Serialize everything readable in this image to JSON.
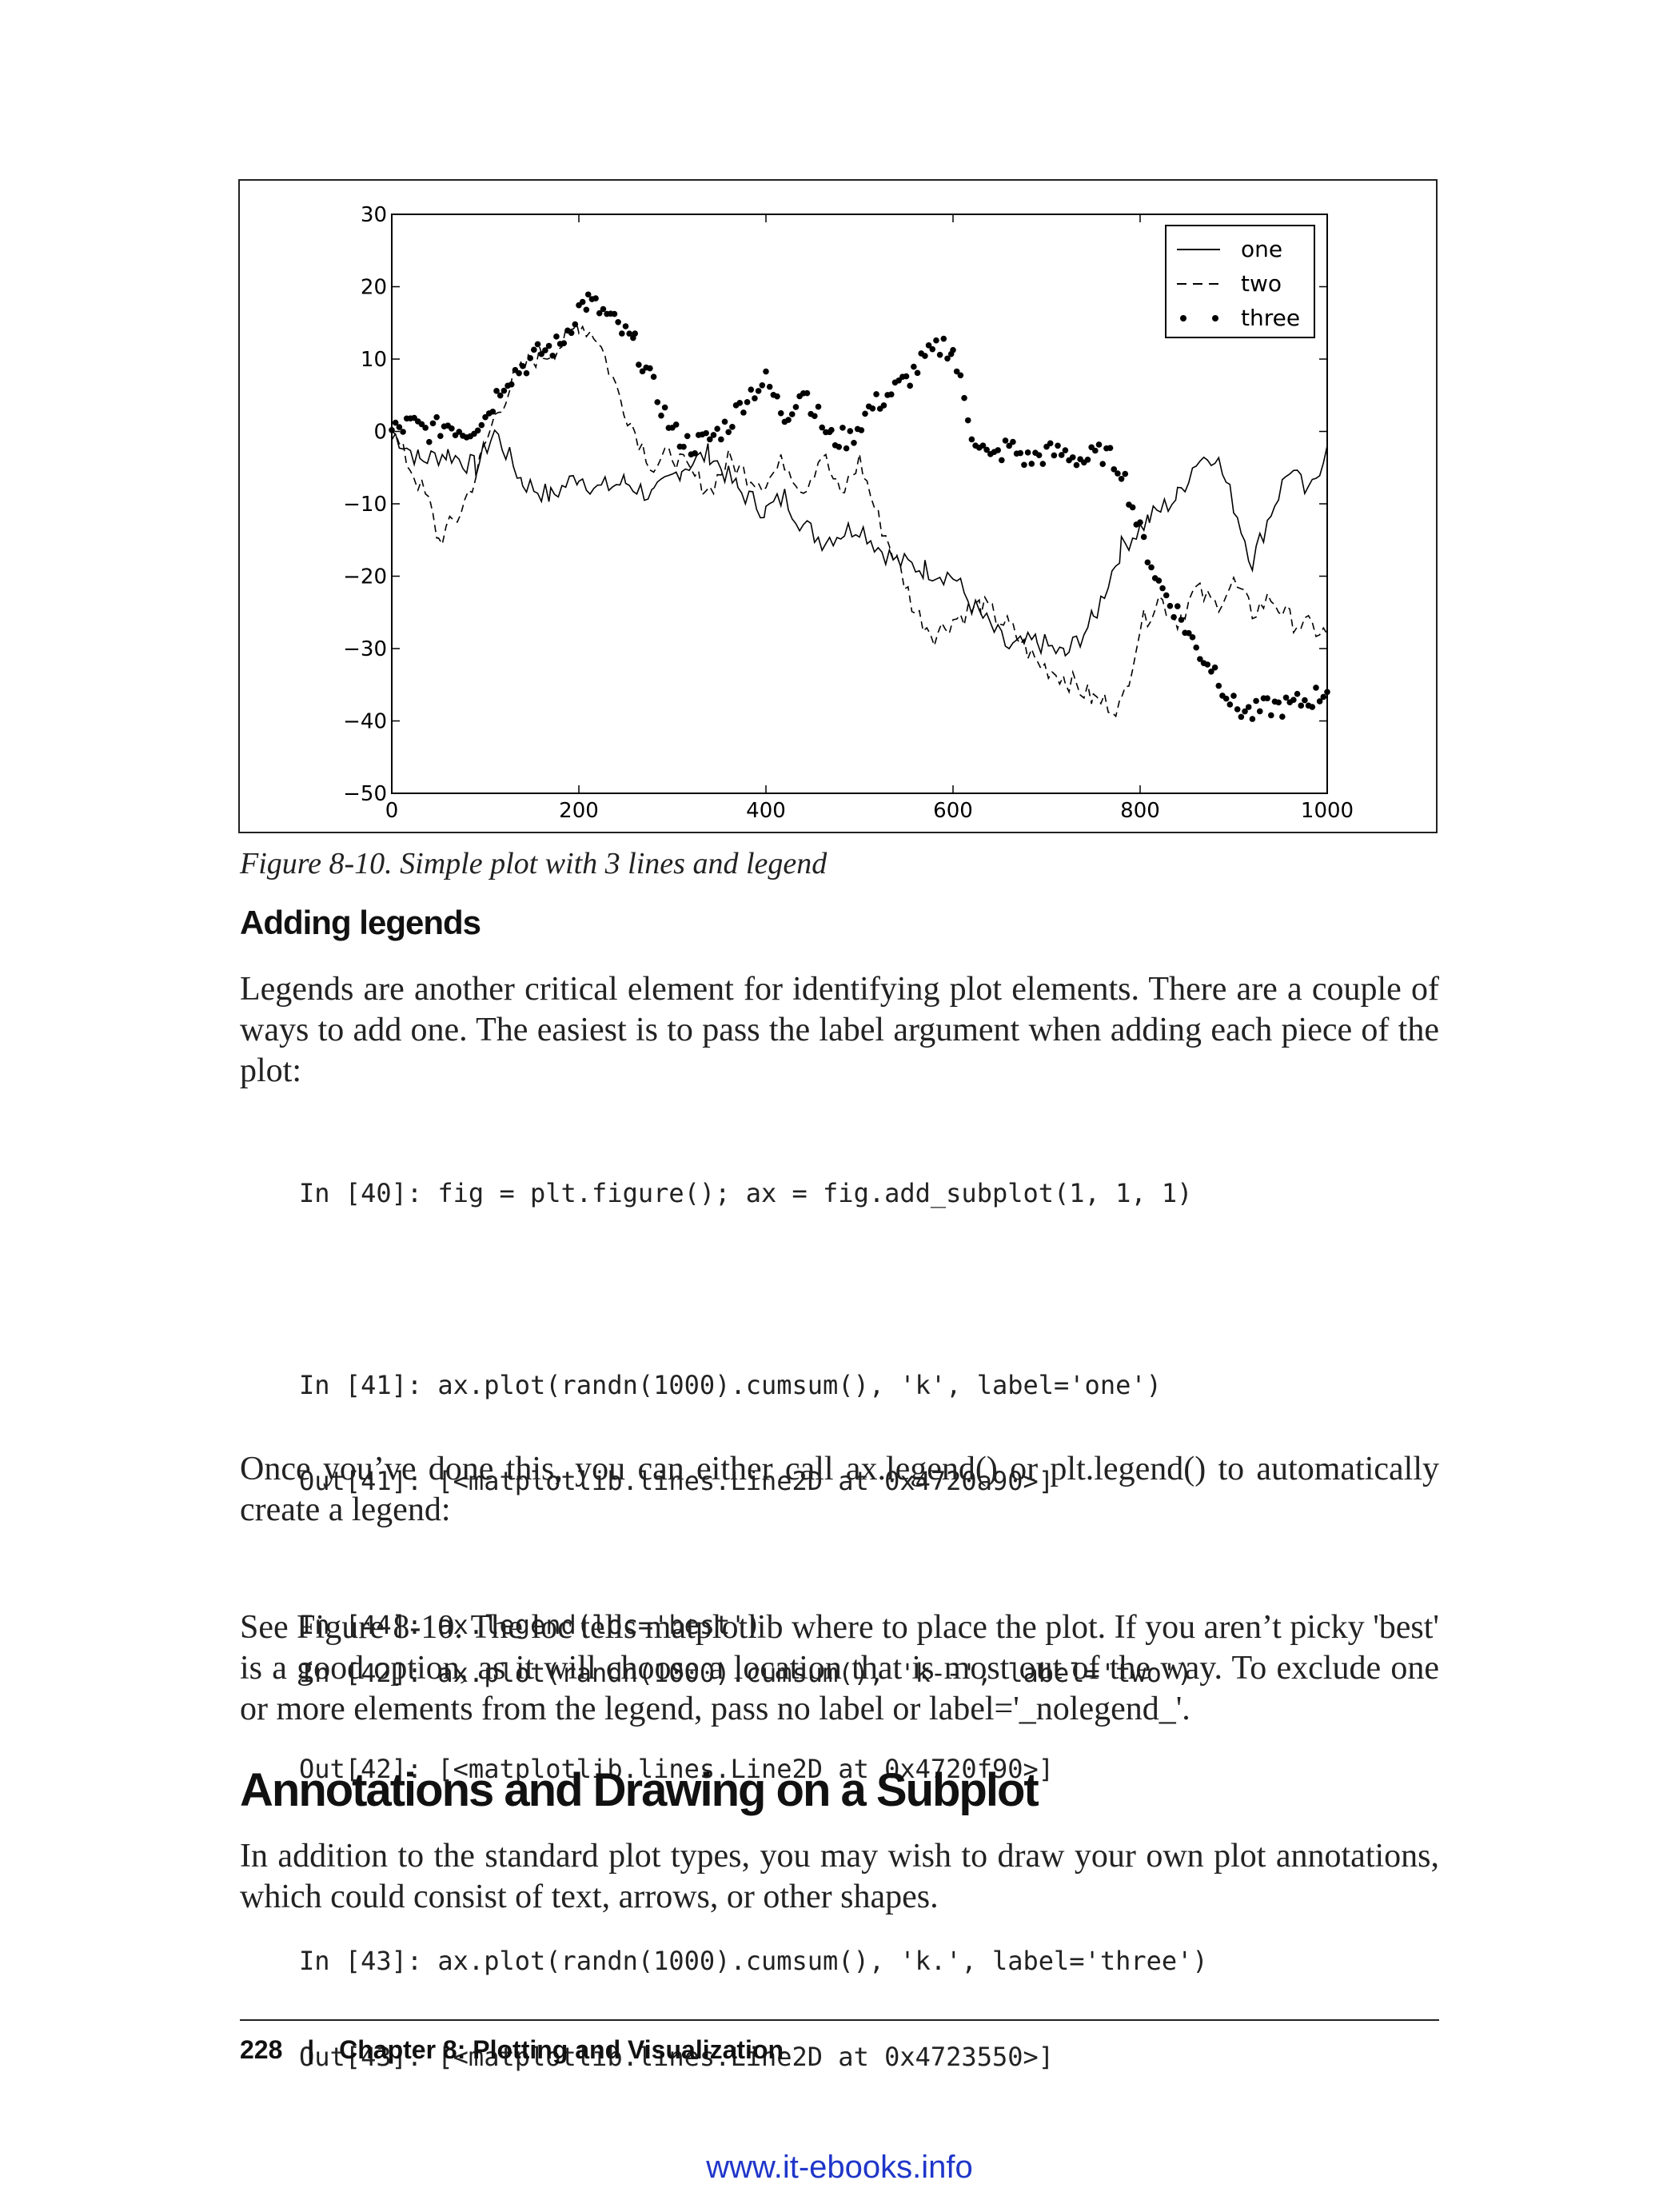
{
  "figure": {
    "caption": "Figure 8-10. Simple plot with 3 lines and legend"
  },
  "chart_data": {
    "type": "line",
    "xlim": [
      0,
      1000
    ],
    "ylim": [
      -50,
      30
    ],
    "xticks": [
      "0",
      "200",
      "400",
      "600",
      "800",
      "1000"
    ],
    "yticks": [
      "30",
      "20",
      "10",
      "0",
      "−10",
      "−20",
      "−30",
      "−40",
      "−50"
    ],
    "legend_position": "top-right",
    "series": [
      {
        "name": "one",
        "style": "solid",
        "x": [
          0,
          30,
          60,
          90,
          110,
          140,
          170,
          200,
          220,
          250,
          280,
          310,
          340,
          370,
          400,
          420,
          440,
          460,
          480,
          500,
          520,
          540,
          570,
          600,
          620,
          640,
          660,
          690,
          720,
          750,
          780,
          810,
          840,
          860,
          880,
          900,
          920,
          940,
          960,
          980,
          1000
        ],
        "y": [
          0,
          -4,
          -3,
          -5,
          0,
          -7,
          -9,
          -6,
          -8,
          -7,
          -9,
          -5,
          -3,
          -8,
          -11,
          -9,
          -13,
          -15,
          -14,
          -13,
          -16,
          -18,
          -19,
          -20,
          -24,
          -27,
          -30,
          -29,
          -31,
          -26,
          -16,
          -12,
          -9,
          -4,
          -3,
          -10,
          -18,
          -11,
          -5,
          -9,
          -2
        ]
      },
      {
        "name": "two",
        "style": "dashed",
        "x": [
          0,
          20,
          40,
          50,
          70,
          90,
          110,
          130,
          150,
          170,
          190,
          200,
          220,
          240,
          260,
          280,
          300,
          320,
          340,
          360,
          380,
          400,
          420,
          440,
          460,
          480,
          500,
          520,
          540,
          560,
          580,
          600,
          630,
          660,
          690,
          720,
          750,
          780,
          800,
          820,
          840,
          860,
          880,
          900,
          920,
          940,
          960,
          980,
          1000
        ],
        "y": [
          0,
          -5,
          -10,
          -15,
          -12,
          -6,
          2,
          7,
          10,
          11,
          13,
          15,
          13,
          6,
          0,
          -5,
          -3,
          -6,
          -8,
          -4,
          -6,
          -7,
          -4,
          -8,
          -3,
          -9,
          -4,
          -12,
          -18,
          -25,
          -28,
          -26,
          -24,
          -27,
          -32,
          -34,
          -37,
          -38,
          -27,
          -23,
          -26,
          -22,
          -24,
          -21,
          -25,
          -23,
          -26,
          -27,
          -28
        ]
      },
      {
        "name": "three",
        "style": "dotted",
        "x": [
          0,
          20,
          40,
          60,
          80,
          100,
          120,
          140,
          160,
          180,
          200,
          210,
          230,
          260,
          280,
          300,
          320,
          340,
          360,
          380,
          400,
          420,
          440,
          460,
          470,
          490,
          510,
          530,
          550,
          570,
          590,
          600,
          620,
          640,
          660,
          680,
          700,
          720,
          740,
          760,
          780,
          800,
          820,
          840,
          860,
          880,
          900,
          920,
          940,
          960,
          980,
          1000
        ],
        "y": [
          0,
          1,
          0,
          1,
          0,
          2,
          7,
          9,
          11,
          12,
          17,
          18,
          16,
          12,
          6,
          0,
          -2,
          -1,
          1,
          5,
          7,
          2,
          6,
          1,
          -1,
          -1,
          3,
          5,
          7,
          10,
          12,
          11,
          0,
          -4,
          -2,
          -4,
          -3,
          -3,
          -4,
          -3,
          -5,
          -14,
          -21,
          -25,
          -30,
          -33,
          -38,
          -39,
          -38,
          -38,
          -37,
          -36
        ]
      }
    ]
  },
  "section_adding_legends": {
    "heading": "Adding legends",
    "para1": "Legends are another critical element for identifying plot elements. There are a couple of ways to add one. The easiest is to pass the label argument when adding each piece of the plot:",
    "para2": "Once you’ve done this, you can either call ax.legend() or plt.legend() to automatically create a legend:",
    "para3": "See Figure 8-10. The loc tells matplotlib where to place the plot. If you aren’t picky 'best' is a good option, as it will choose a location that is most out of the way. To exclude one or more elements from the legend, pass no label or label='_nolegend_'."
  },
  "code": {
    "in40": "In [40]: fig = plt.figure(); ax = fig.add_subplot(1, 1, 1)",
    "in41": "In [41]: ax.plot(randn(1000).cumsum(), 'k', label='one')",
    "out41": "Out[41]: [<matplotlib.lines.Line2D at 0x4720a90>]",
    "in42": "In [42]: ax.plot(randn(1000).cumsum(), 'k--', label='two')",
    "out42": "Out[42]: [<matplotlib.lines.Line2D at 0x4720f90>]",
    "in43": "In [43]: ax.plot(randn(1000).cumsum(), 'k.', label='three')",
    "out43": "Out[43]: [<matplotlib.lines.Line2D at 0x4723550>]",
    "in44": "In [44]: ax.legend(loc='best')"
  },
  "section_annotations": {
    "heading": "Annotations and Drawing on a Subplot",
    "para": "In addition to the standard plot types, you may wish to draw your own plot annotations, which could consist of text, arrows, or other shapes."
  },
  "footer": {
    "page": "228",
    "sep": "|",
    "chapter": "Chapter 8: Plotting and Visualization"
  },
  "watermark": "www.it-ebooks.info"
}
